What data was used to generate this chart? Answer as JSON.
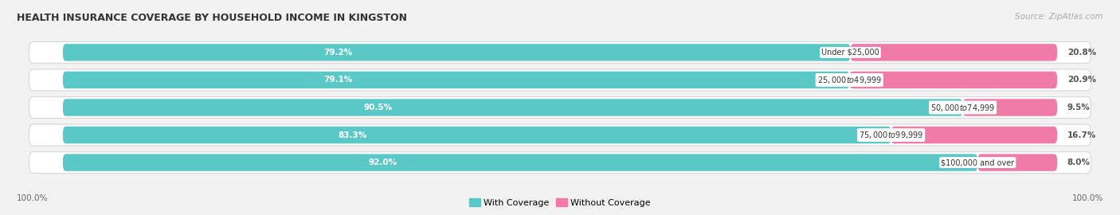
{
  "title": "HEALTH INSURANCE COVERAGE BY HOUSEHOLD INCOME IN KINGSTON",
  "source": "Source: ZipAtlas.com",
  "categories": [
    "Under $25,000",
    "$25,000 to $49,999",
    "$50,000 to $74,999",
    "$75,000 to $99,999",
    "$100,000 and over"
  ],
  "with_coverage": [
    79.2,
    79.1,
    90.5,
    83.3,
    92.0
  ],
  "without_coverage": [
    20.8,
    20.9,
    9.5,
    16.7,
    8.0
  ],
  "color_with": "#5bc8c8",
  "color_without": "#f07aa8",
  "background_color": "#f2f2f2",
  "bar_row_color": "#ffffff",
  "bar_row_edge": "#d8d8d8",
  "bar_height": 0.62,
  "legend_with": "With Coverage",
  "legend_without": "Without Coverage",
  "left_label": "100.0%",
  "right_label": "100.0%",
  "title_fontsize": 9.0,
  "source_fontsize": 7.5,
  "bar_label_fontsize": 7.5,
  "cat_label_fontsize": 7.0,
  "legend_fontsize": 8.0
}
